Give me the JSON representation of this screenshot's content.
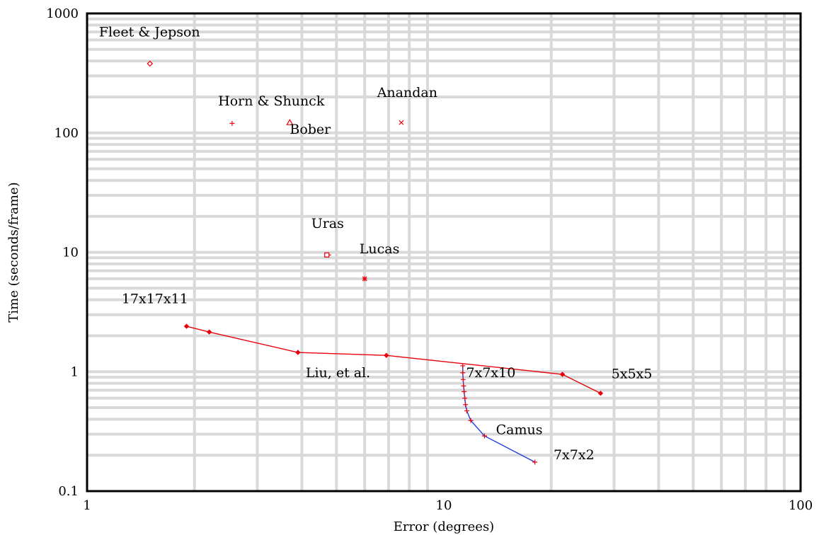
{
  "chart_data": {
    "type": "scatter",
    "title": "",
    "xlabel": "Error (degrees)",
    "ylabel": "Time (seconds/frame)",
    "xscale": "log",
    "yscale": "log",
    "xlim": [
      1,
      100
    ],
    "ylim": [
      0.1,
      1000
    ],
    "grid": true,
    "x_tick_labels": [
      "1",
      "10",
      "100"
    ],
    "y_tick_labels": [
      "0.1",
      "1",
      "10",
      "100",
      "1000"
    ],
    "colors": {
      "red": "#e8000b",
      "blue": "#1f3fe0",
      "grid": "#d9d9d9",
      "axis": "#000000"
    },
    "points": [
      {
        "label": "Fleet & Jepson",
        "x": 1.5,
        "y": 380,
        "marker": "diamond"
      },
      {
        "label": "Horn & Shunck",
        "x": 2.55,
        "y": 120,
        "marker": "plus"
      },
      {
        "label": "Bober",
        "x": 3.7,
        "y": 122,
        "marker": "triangle"
      },
      {
        "label": "Anandan",
        "x": 7.6,
        "y": 122,
        "marker": "x"
      },
      {
        "label": "Uras",
        "x": 4.7,
        "y": 9.5,
        "marker": "square"
      },
      {
        "label": "Lucas",
        "x": 6.0,
        "y": 6.0,
        "marker": "star"
      }
    ],
    "series": [
      {
        "name": "Liu, et al.",
        "color": "#e8000b",
        "marker": "diamond",
        "x": [
          1.9,
          2.2,
          3.9,
          6.9,
          21.5,
          27.5
        ],
        "y": [
          2.4,
          2.15,
          1.45,
          1.37,
          0.95,
          0.66
        ]
      },
      {
        "name": "Camus",
        "color": "#1f3fe0",
        "marker": "plus",
        "x": [
          11.3,
          11.3,
          11.33,
          11.36,
          11.4,
          11.45,
          11.5,
          11.6,
          11.9,
          13.0,
          18.0
        ],
        "y": [
          1.12,
          0.98,
          0.86,
          0.76,
          0.68,
          0.6,
          0.53,
          0.47,
          0.39,
          0.29,
          0.175
        ]
      }
    ],
    "annotations": [
      {
        "text": "Fleet & Jepson",
        "x": 1.08,
        "y": 640
      },
      {
        "text": "Horn & Shunck",
        "x": 2.33,
        "y": 170
      },
      {
        "text": "Bober",
        "x": 3.7,
        "y": 98
      },
      {
        "text": "Anandan",
        "x": 6.5,
        "y": 200
      },
      {
        "text": "Uras",
        "x": 4.25,
        "y": 16
      },
      {
        "text": "Lucas",
        "x": 5.8,
        "y": 9.8
      },
      {
        "text": "17x17x11",
        "x": 1.25,
        "y": 3.75
      },
      {
        "text": "Liu, et al.",
        "x": 4.1,
        "y": 0.9
      },
      {
        "text": "7x7x10",
        "x": 11.55,
        "y": 0.9
      },
      {
        "text": "5x5x5",
        "x": 29.5,
        "y": 0.88
      },
      {
        "text": "Camus",
        "x": 14.0,
        "y": 0.3
      },
      {
        "text": "7x7x2",
        "x": 20.3,
        "y": 0.185
      }
    ]
  }
}
